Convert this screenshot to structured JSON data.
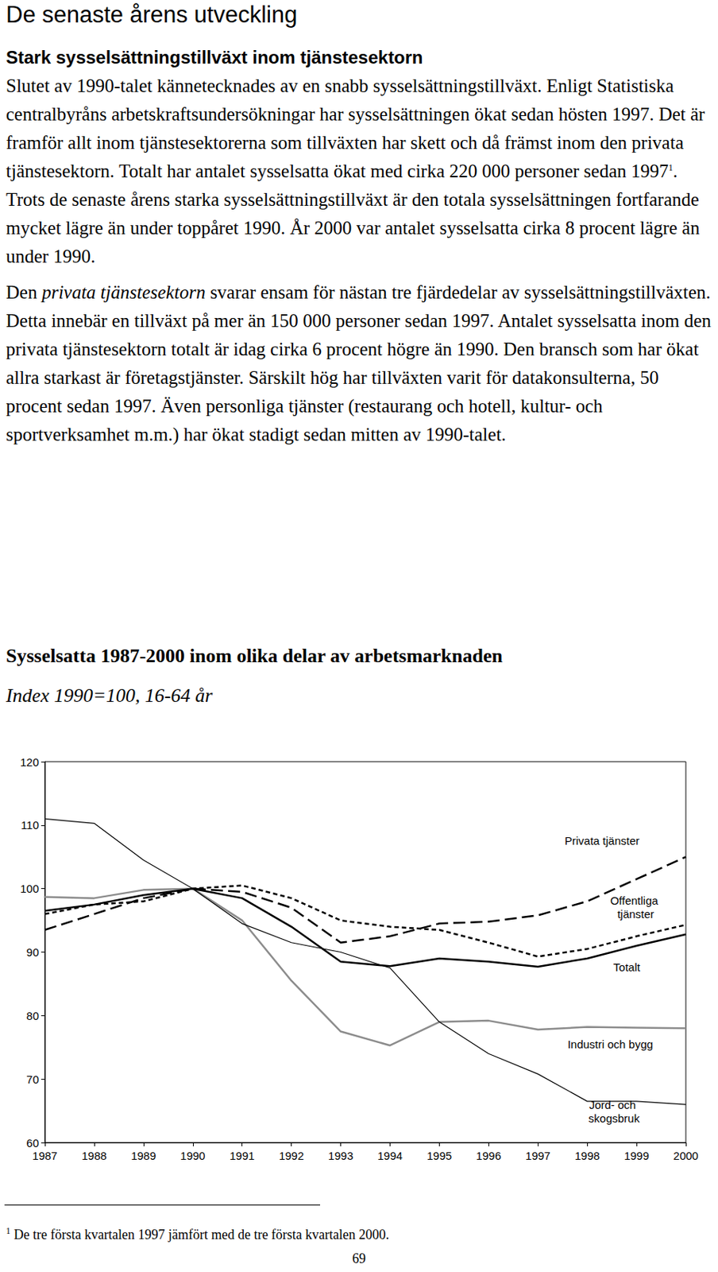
{
  "heading": "De senaste årens utveckling",
  "subheading": "Stark sysselsättningstillväxt inom tjänstesektorn",
  "paragraphs": [
    [
      {
        "text": "Slutet av 1990-talet kännetecknades av en snabb sysselsättningstillväxt. Enligt Statistiska centralbyråns arbetskraftsundersökningar har sysselsättningen ökat sedan hösten 1997. Det är framför allt inom tjänstesektorerna som tillväxten har skett och då främst inom den privata tjänstesektorn. Totalt har antalet sysselsatta ökat med cirka 220 000 personer sedan 1997"
      },
      {
        "sup": "1"
      },
      {
        "text": ". Trots de senaste årens starka sysselsättningstillväxt är den totala sysselsättningen fortfarande mycket lägre än under toppåret 1990. År 2000 var antalet sysselsatta cirka 8 procent lägre än under 1990."
      }
    ],
    [
      {
        "text": "Den "
      },
      {
        "italic": "privata tjänstesektorn"
      },
      {
        "text": " svarar ensam för nästan tre fjärdedelar av sysselsättningstillväxten. Detta innebär en tillväxt på mer än 150 000 personer sedan 1997. Antalet sysselsatta inom den privata tjänstesektorn totalt är idag cirka 6 procent högre än 1990. Den bransch som har ökat allra starkast är företagstjänster. Särskilt hög har tillväxten varit för datakonsulterna, 50 procent sedan 1997. Även personliga tjänster (restaurang och hotell, kultur- och sportverksamhet m.m.) har ökat stadigt sedan mitten av 1990-talet."
      }
    ]
  ],
  "chart_data": {
    "type": "line",
    "title": "Sysselsatta 1987-2000 inom olika delar av arbetsmarknaden",
    "subtitle": "Index 1990=100, 16-64 år",
    "categories": [
      "1987",
      "1988",
      "1989",
      "1990",
      "1991",
      "1992",
      "1993",
      "1994",
      "1995",
      "1996",
      "1997",
      "1998",
      "1999",
      "2000"
    ],
    "ylim": [
      60,
      120
    ],
    "yticks": [
      60,
      70,
      80,
      90,
      100,
      110,
      120
    ],
    "grid": false,
    "series": [
      {
        "name": "Privata tjänster",
        "color": "#000000",
        "line_style": "long_dash",
        "values": [
          93.5,
          96,
          98.5,
          100,
          99.5,
          97,
          91.5,
          92.5,
          94.5,
          94.8,
          95.8,
          98,
          101.5,
          105
        ]
      },
      {
        "name": "Offentliga tjänster",
        "color": "#000000",
        "line_style": "short_dash",
        "values": [
          96,
          97.5,
          98,
          100,
          100.5,
          98.5,
          95,
          94,
          93.5,
          91.5,
          89.3,
          90.5,
          92.5,
          94.3
        ]
      },
      {
        "name": "Totalt",
        "color": "#000000",
        "line_style": "solid_thick",
        "values": [
          96.5,
          97.5,
          99,
          100,
          98.5,
          94,
          88.5,
          87.8,
          89,
          88.5,
          87.7,
          89,
          91,
          92.8
        ]
      },
      {
        "name": "Industri och bygg",
        "color": "#8c8c8c",
        "line_style": "solid_thick",
        "values": [
          98.7,
          98.5,
          99.8,
          100,
          95,
          85.5,
          77.5,
          75.3,
          79,
          79.2,
          77.8,
          78.2,
          78.1,
          78
        ]
      },
      {
        "name": "Jord- och skogsbruk",
        "color": "#000000",
        "line_style": "solid_thin",
        "values": [
          111,
          110.3,
          104.5,
          100,
          94.5,
          91.5,
          90,
          87.5,
          79,
          74,
          70.8,
          66.5,
          66.5,
          66
        ]
      }
    ]
  },
  "footnote": [
    {
      "sup": "1"
    },
    {
      "text": " De tre första kvartalen 1997 jämfört med de tre första kvartalen 2000."
    }
  ],
  "page_number": "69"
}
